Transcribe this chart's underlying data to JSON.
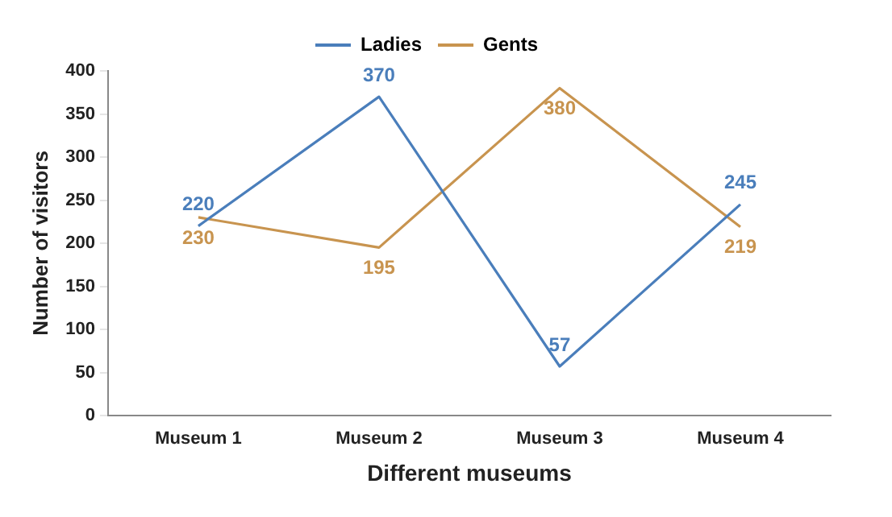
{
  "chart_data": {
    "type": "line",
    "xlabel": "Different museums",
    "ylabel": "Number of visitors",
    "categories": [
      "Museum 1",
      "Museum 2",
      "Museum 3",
      "Museum 4"
    ],
    "series": [
      {
        "name": "Ladies",
        "color": "#4a7ebb",
        "values": [
          220,
          370,
          57,
          245
        ]
      },
      {
        "name": "Gents",
        "color": "#c8944f",
        "values": [
          230,
          195,
          380,
          219
        ]
      }
    ],
    "ylim": [
      0,
      400
    ],
    "yticks": [
      0,
      50,
      100,
      150,
      200,
      250,
      300,
      350,
      400
    ],
    "grid": false,
    "legend": "top",
    "marker": "none",
    "line_style": "solid",
    "data_labels": true
  }
}
